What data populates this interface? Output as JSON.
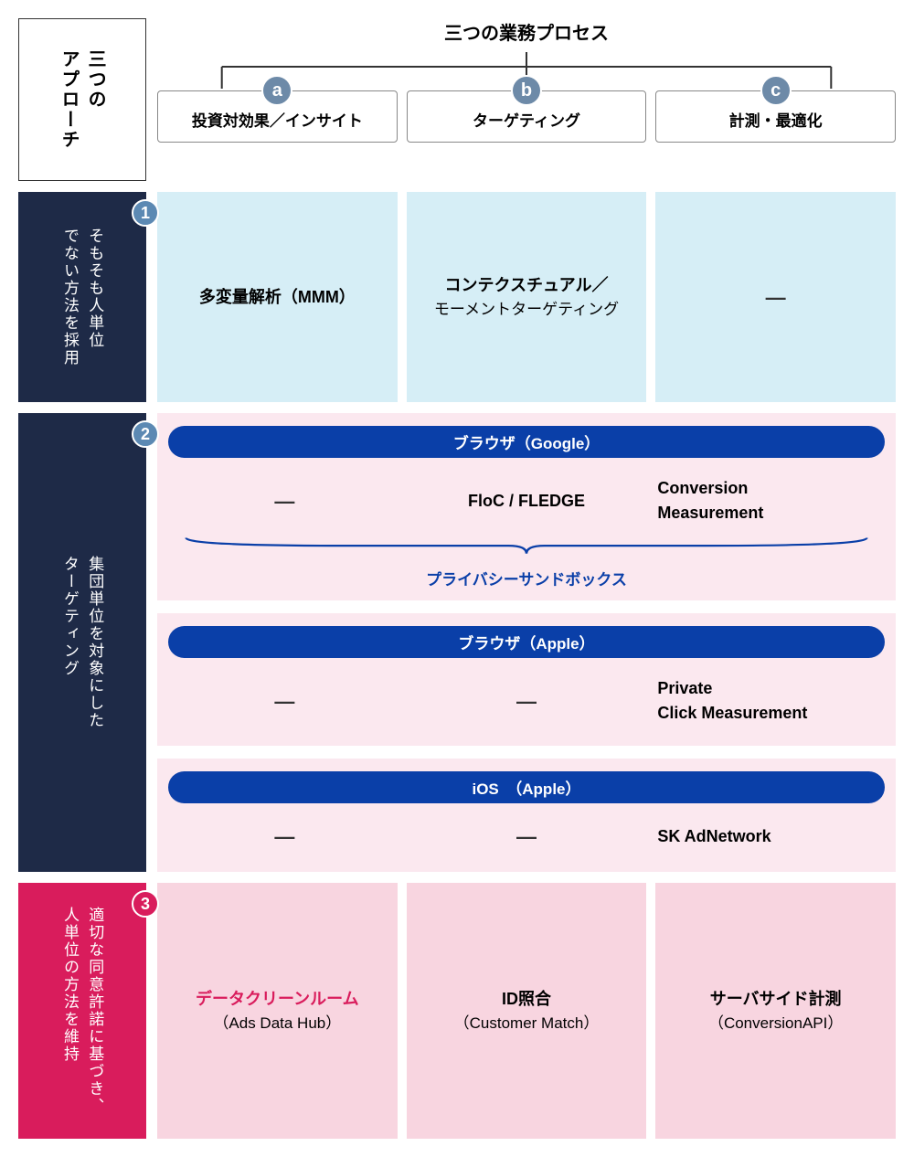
{
  "colors": {
    "darkNavy": "#1e2a47",
    "pinkStrong": "#d91c5c",
    "pillBlue": "#0a3fa8",
    "badgeBlue": "#5c89b3",
    "colBadge": "#6d8aa8",
    "row1Bg": "#d6eef6",
    "row2Bg": "#fbe8ef",
    "row3Bg": "#f8d5e0",
    "border": "#888888"
  },
  "leftHeader": "三つの\nアプローチ",
  "topTitle": "三つの業務プロセス",
  "columns": [
    {
      "badge": "a",
      "label": "投資対効果／インサイト"
    },
    {
      "badge": "b",
      "label": "ターゲティング"
    },
    {
      "badge": "c",
      "label": "計測・最適化"
    }
  ],
  "rows": [
    {
      "badge": "1",
      "badgeColor": "blue",
      "bg": "dark",
      "label": "そもそも人単位\nでない方法を採用",
      "cells": [
        {
          "main": "多変量解析（MMM）"
        },
        {
          "main": "コンテクスチュアル／",
          "sub": "モーメントターゲティング"
        },
        {
          "main": "―"
        }
      ]
    },
    {
      "badge": "2",
      "badgeColor": "blue",
      "bg": "dark",
      "label": "集団単位を対象にした\nターゲティング",
      "blocks": [
        {
          "header": "ブラウザ（Google）",
          "cells": [
            {
              "main": "―"
            },
            {
              "main": "FloC / FLEDGE"
            },
            {
              "main": "Conversion",
              "sub": "Measurement"
            }
          ],
          "footer": "プライバシーサンドボックス",
          "hasBrace": true
        },
        {
          "header": "ブラウザ（Apple）",
          "cells": [
            {
              "main": "―"
            },
            {
              "main": "―"
            },
            {
              "main": "Private",
              "sub": "Click Measurement"
            }
          ]
        },
        {
          "header": "iOS　（Apple）",
          "cells": [
            {
              "main": "―"
            },
            {
              "main": "―"
            },
            {
              "main": "SK AdNetwork"
            }
          ]
        }
      ]
    },
    {
      "badge": "3",
      "badgeColor": "red",
      "bg": "pink",
      "label": "適切な同意許諾に基づき、\n人単位の方法を維持",
      "cells": [
        {
          "main": "データクリーンルーム",
          "sub": "（Ads Data Hub）",
          "mainColor": "red"
        },
        {
          "main": "ID照合",
          "sub": "（Customer Match）"
        },
        {
          "main": "サーバサイド計測",
          "sub": "（ConversionAPI）"
        }
      ]
    }
  ]
}
